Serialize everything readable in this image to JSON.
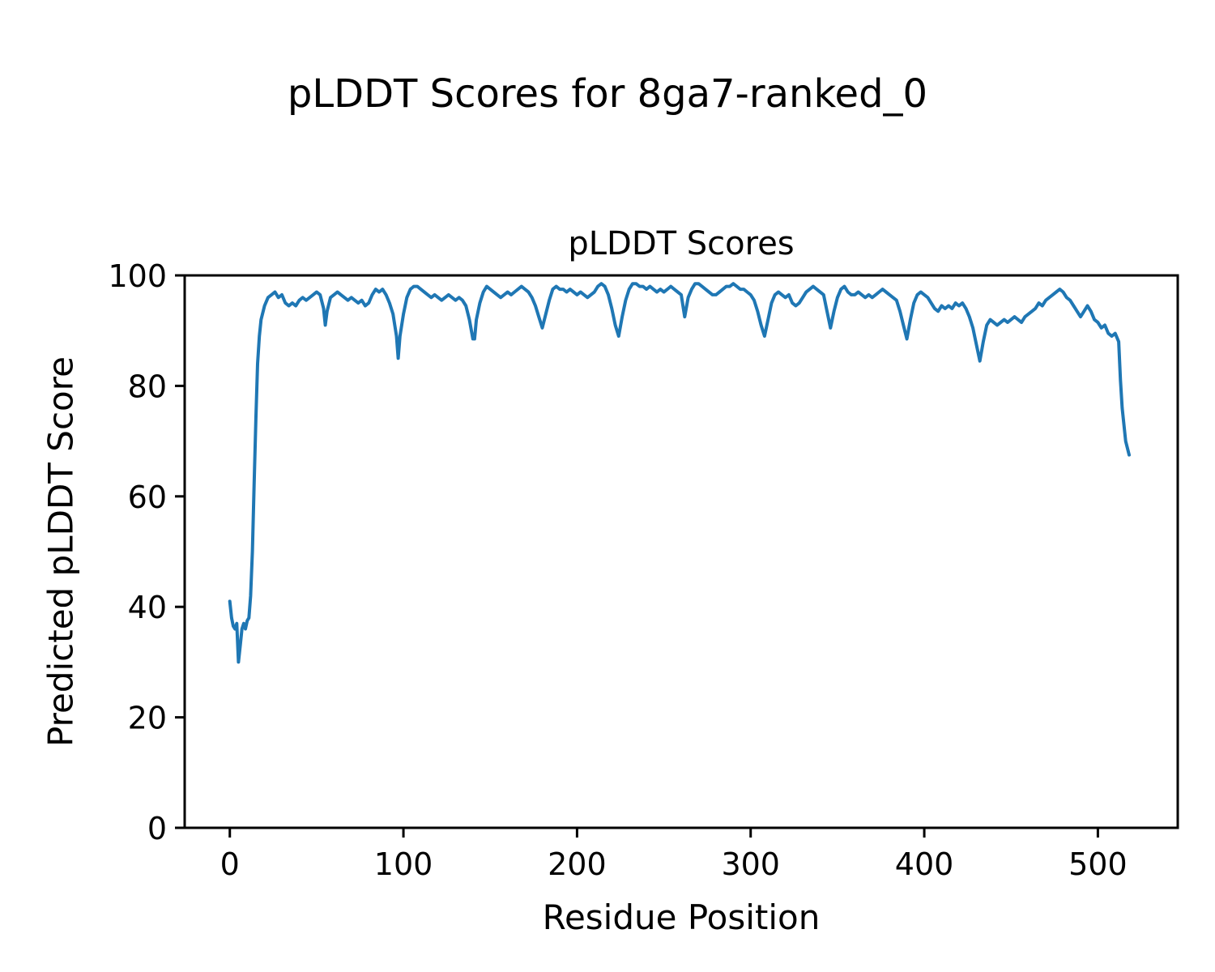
{
  "figure": {
    "suptitle": "pLDDT Scores for 8ga7-ranked_0"
  },
  "chart_data": {
    "type": "line",
    "title": "pLDDT Scores",
    "xlabel": "Residue Position",
    "ylabel": "Predicted pLDDT Score",
    "xlim": [
      -26,
      546
    ],
    "ylim": [
      0,
      100
    ],
    "xticks": [
      0,
      100,
      200,
      300,
      400,
      500
    ],
    "yticks": [
      0,
      20,
      40,
      60,
      80,
      100
    ],
    "grid": false,
    "legend": "none",
    "line_color": "#1f77b4",
    "line_width": 4,
    "series": [
      {
        "name": "pLDDT",
        "points": [
          [
            0,
            41
          ],
          [
            1,
            38
          ],
          [
            2,
            36.5
          ],
          [
            3,
            36
          ],
          [
            4,
            37
          ],
          [
            5,
            30
          ],
          [
            6,
            33
          ],
          [
            7,
            36
          ],
          [
            8,
            37
          ],
          [
            9,
            36
          ],
          [
            10,
            37.5
          ],
          [
            11,
            38
          ],
          [
            12,
            42
          ],
          [
            13,
            50
          ],
          [
            14,
            62
          ],
          [
            15,
            74
          ],
          [
            16,
            84
          ],
          [
            17,
            89
          ],
          [
            18,
            92
          ],
          [
            20,
            94.5
          ],
          [
            22,
            96
          ],
          [
            24,
            96.5
          ],
          [
            26,
            97
          ],
          [
            28,
            96
          ],
          [
            30,
            96.5
          ],
          [
            32,
            95
          ],
          [
            34,
            94.5
          ],
          [
            36,
            95
          ],
          [
            38,
            94.5
          ],
          [
            40,
            95.5
          ],
          [
            42,
            96
          ],
          [
            44,
            95.5
          ],
          [
            46,
            96
          ],
          [
            48,
            96.5
          ],
          [
            50,
            97
          ],
          [
            52,
            96.5
          ],
          [
            54,
            94
          ],
          [
            55,
            91
          ],
          [
            56,
            93.5
          ],
          [
            58,
            96
          ],
          [
            60,
            96.5
          ],
          [
            62,
            97
          ],
          [
            64,
            96.5
          ],
          [
            66,
            96
          ],
          [
            68,
            95.5
          ],
          [
            70,
            96
          ],
          [
            72,
            95.5
          ],
          [
            74,
            95
          ],
          [
            76,
            95.5
          ],
          [
            78,
            94.5
          ],
          [
            80,
            95
          ],
          [
            82,
            96.5
          ],
          [
            84,
            97.5
          ],
          [
            86,
            97
          ],
          [
            88,
            97.5
          ],
          [
            90,
            96.5
          ],
          [
            92,
            95
          ],
          [
            94,
            93
          ],
          [
            96,
            89
          ],
          [
            97,
            85
          ],
          [
            98,
            89
          ],
          [
            100,
            93
          ],
          [
            102,
            96
          ],
          [
            104,
            97.5
          ],
          [
            106,
            98
          ],
          [
            108,
            98
          ],
          [
            110,
            97.5
          ],
          [
            112,
            97
          ],
          [
            114,
            96.5
          ],
          [
            116,
            96
          ],
          [
            118,
            96.5
          ],
          [
            120,
            96
          ],
          [
            122,
            95.5
          ],
          [
            124,
            96
          ],
          [
            126,
            96.5
          ],
          [
            128,
            96
          ],
          [
            130,
            95.5
          ],
          [
            132,
            96
          ],
          [
            134,
            95.5
          ],
          [
            136,
            94.5
          ],
          [
            138,
            92
          ],
          [
            140,
            88.5
          ],
          [
            141,
            88.5
          ],
          [
            142,
            92
          ],
          [
            144,
            95
          ],
          [
            146,
            97
          ],
          [
            148,
            98
          ],
          [
            150,
            97.5
          ],
          [
            152,
            97
          ],
          [
            154,
            96.5
          ],
          [
            156,
            96
          ],
          [
            158,
            96.5
          ],
          [
            160,
            97
          ],
          [
            162,
            96.5
          ],
          [
            164,
            97
          ],
          [
            166,
            97.5
          ],
          [
            168,
            98
          ],
          [
            170,
            97.5
          ],
          [
            172,
            97
          ],
          [
            174,
            96
          ],
          [
            176,
            94.5
          ],
          [
            178,
            92.5
          ],
          [
            180,
            90.5
          ],
          [
            182,
            93
          ],
          [
            184,
            95.5
          ],
          [
            186,
            97.5
          ],
          [
            188,
            98
          ],
          [
            190,
            97.5
          ],
          [
            192,
            97.5
          ],
          [
            194,
            97
          ],
          [
            196,
            97.5
          ],
          [
            198,
            97
          ],
          [
            200,
            96.5
          ],
          [
            202,
            97
          ],
          [
            204,
            96.5
          ],
          [
            206,
            96
          ],
          [
            208,
            96.5
          ],
          [
            210,
            97
          ],
          [
            212,
            98
          ],
          [
            214,
            98.5
          ],
          [
            216,
            98
          ],
          [
            218,
            96.5
          ],
          [
            220,
            94
          ],
          [
            222,
            91
          ],
          [
            224,
            89
          ],
          [
            226,
            92.5
          ],
          [
            228,
            95.5
          ],
          [
            230,
            97.5
          ],
          [
            232,
            98.5
          ],
          [
            234,
            98.5
          ],
          [
            236,
            98
          ],
          [
            238,
            98
          ],
          [
            240,
            97.5
          ],
          [
            242,
            98
          ],
          [
            244,
            97.5
          ],
          [
            246,
            97
          ],
          [
            248,
            97.5
          ],
          [
            250,
            97
          ],
          [
            252,
            97.5
          ],
          [
            254,
            98
          ],
          [
            256,
            97.5
          ],
          [
            258,
            97
          ],
          [
            260,
            96.5
          ],
          [
            262,
            92.5
          ],
          [
            264,
            96
          ],
          [
            266,
            97.5
          ],
          [
            268,
            98.5
          ],
          [
            270,
            98.5
          ],
          [
            272,
            98
          ],
          [
            274,
            97.5
          ],
          [
            276,
            97
          ],
          [
            278,
            96.5
          ],
          [
            280,
            96.5
          ],
          [
            282,
            97
          ],
          [
            284,
            97.5
          ],
          [
            286,
            98
          ],
          [
            288,
            98
          ],
          [
            290,
            98.5
          ],
          [
            292,
            98
          ],
          [
            294,
            97.5
          ],
          [
            296,
            97.5
          ],
          [
            298,
            97
          ],
          [
            300,
            96.5
          ],
          [
            302,
            95.5
          ],
          [
            304,
            93.5
          ],
          [
            306,
            91
          ],
          [
            308,
            89
          ],
          [
            310,
            92
          ],
          [
            312,
            95
          ],
          [
            314,
            96.5
          ],
          [
            316,
            97
          ],
          [
            318,
            96.5
          ],
          [
            320,
            96
          ],
          [
            322,
            96.5
          ],
          [
            324,
            95
          ],
          [
            326,
            94.5
          ],
          [
            328,
            95
          ],
          [
            330,
            96
          ],
          [
            332,
            97
          ],
          [
            334,
            97.5
          ],
          [
            336,
            98
          ],
          [
            338,
            97.5
          ],
          [
            340,
            97
          ],
          [
            342,
            96.5
          ],
          [
            344,
            93.5
          ],
          [
            346,
            90.5
          ],
          [
            348,
            93.5
          ],
          [
            350,
            96
          ],
          [
            352,
            97.5
          ],
          [
            354,
            98
          ],
          [
            356,
            97
          ],
          [
            358,
            96.5
          ],
          [
            360,
            96.5
          ],
          [
            362,
            97
          ],
          [
            364,
            96.5
          ],
          [
            366,
            96
          ],
          [
            368,
            96.5
          ],
          [
            370,
            96
          ],
          [
            372,
            96.5
          ],
          [
            374,
            97
          ],
          [
            376,
            97.5
          ],
          [
            378,
            97
          ],
          [
            380,
            96.5
          ],
          [
            382,
            96
          ],
          [
            384,
            95.5
          ],
          [
            386,
            93.5
          ],
          [
            388,
            91
          ],
          [
            390,
            88.5
          ],
          [
            392,
            92
          ],
          [
            394,
            95
          ],
          [
            396,
            96.5
          ],
          [
            398,
            97
          ],
          [
            400,
            96.5
          ],
          [
            402,
            96
          ],
          [
            404,
            95
          ],
          [
            406,
            94
          ],
          [
            408,
            93.5
          ],
          [
            410,
            94.5
          ],
          [
            412,
            94
          ],
          [
            414,
            94.5
          ],
          [
            416,
            94
          ],
          [
            418,
            95
          ],
          [
            420,
            94.5
          ],
          [
            422,
            95
          ],
          [
            424,
            94
          ],
          [
            426,
            92.5
          ],
          [
            428,
            90.5
          ],
          [
            430,
            87.5
          ],
          [
            432,
            84.5
          ],
          [
            434,
            88
          ],
          [
            436,
            91
          ],
          [
            438,
            92
          ],
          [
            440,
            91.5
          ],
          [
            442,
            91
          ],
          [
            444,
            91.5
          ],
          [
            446,
            92
          ],
          [
            448,
            91.5
          ],
          [
            450,
            92
          ],
          [
            452,
            92.5
          ],
          [
            454,
            92
          ],
          [
            456,
            91.5
          ],
          [
            458,
            92.5
          ],
          [
            460,
            93
          ],
          [
            462,
            93.5
          ],
          [
            464,
            94
          ],
          [
            466,
            95
          ],
          [
            468,
            94.5
          ],
          [
            470,
            95.5
          ],
          [
            472,
            96
          ],
          [
            474,
            96.5
          ],
          [
            476,
            97
          ],
          [
            478,
            97.5
          ],
          [
            480,
            97
          ],
          [
            482,
            96
          ],
          [
            484,
            95.5
          ],
          [
            486,
            94.5
          ],
          [
            488,
            93.5
          ],
          [
            490,
            92.5
          ],
          [
            492,
            93.5
          ],
          [
            494,
            94.5
          ],
          [
            496,
            93.5
          ],
          [
            498,
            92
          ],
          [
            500,
            91.5
          ],
          [
            502,
            90.5
          ],
          [
            504,
            91
          ],
          [
            506,
            89.5
          ],
          [
            508,
            89
          ],
          [
            510,
            89.5
          ],
          [
            512,
            88
          ],
          [
            513,
            81
          ],
          [
            514,
            76
          ],
          [
            516,
            70
          ],
          [
            518,
            67.5
          ]
        ]
      }
    ]
  }
}
